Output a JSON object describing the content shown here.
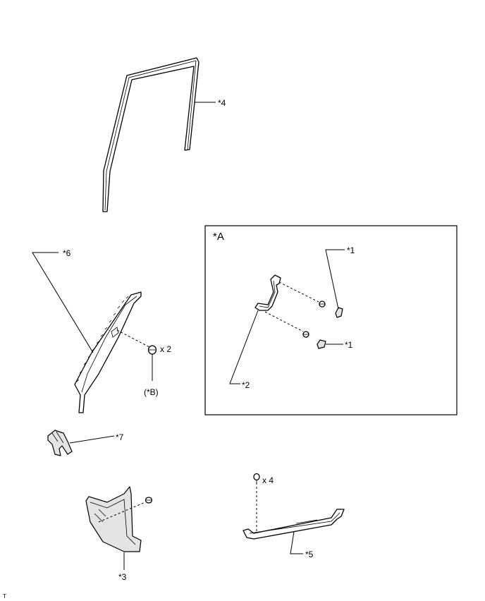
{
  "callouts": {
    "part4": "*4",
    "part6": "*6",
    "part7": "*7",
    "part3": "*3",
    "part5": "*5",
    "part2": "*2",
    "part1_upper": "*1",
    "part1_lower": "*1",
    "clip_qty": "x 2",
    "clip_ref": "(*B)",
    "bolt_qty": "x 4"
  },
  "inset": {
    "label": "*A"
  },
  "corner_mark": "T"
}
